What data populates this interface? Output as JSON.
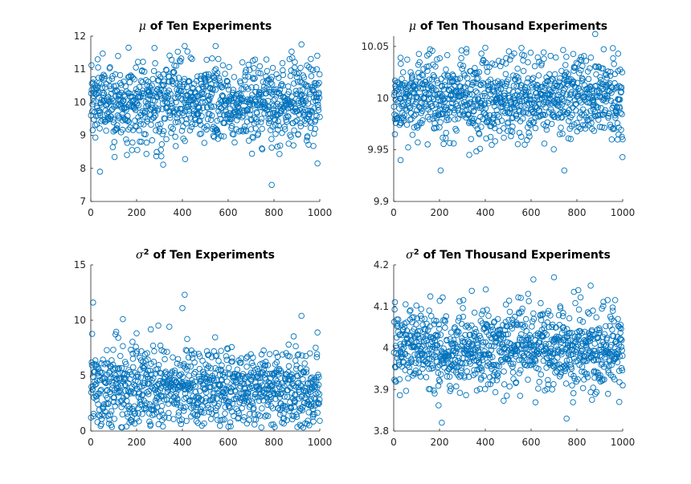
{
  "colors": {
    "marker": "#0072bd",
    "axis": "#262626"
  },
  "chart_data": [
    {
      "type": "scatter",
      "title_symbol": "μ",
      "title_superscript": "",
      "title": "of Ten Experiments",
      "xlim": [
        0,
        1000
      ],
      "ylim": [
        7,
        12
      ],
      "xticks": [
        0,
        200,
        400,
        600,
        800,
        1000
      ],
      "yticks": [
        7,
        8,
        9,
        10,
        11,
        12
      ],
      "xticklabels": [
        "0",
        "200",
        "400",
        "600",
        "800",
        "1000"
      ],
      "yticklabels": [
        "7",
        "8",
        "9",
        "10",
        "11",
        "12"
      ],
      "grid": false,
      "points": {
        "n": 1000,
        "x_range": [
          1,
          1000
        ],
        "center": 10.0,
        "sd": 0.6,
        "clip": [
          7.9,
          11.75
        ]
      },
      "highlights": [
        {
          "x": 30,
          "y": 11.3
        },
        {
          "x": 40,
          "y": 7.9
        },
        {
          "x": 165,
          "y": 11.65
        },
        {
          "x": 410,
          "y": 11.7
        },
        {
          "x": 545,
          "y": 11.7
        },
        {
          "x": 790,
          "y": 7.5
        },
        {
          "x": 920,
          "y": 11.75
        },
        {
          "x": 990,
          "y": 8.15
        }
      ]
    },
    {
      "type": "scatter",
      "title_symbol": "μ",
      "title_superscript": "",
      "title": "of Ten Thousand Experiments",
      "xlim": [
        0,
        1000
      ],
      "ylim": [
        9.9,
        10.06
      ],
      "xticks": [
        0,
        200,
        400,
        600,
        800,
        1000
      ],
      "yticks": [
        9.9,
        9.95,
        10,
        10.05
      ],
      "xticklabels": [
        "0",
        "200",
        "400",
        "600",
        "800",
        "1000"
      ],
      "yticklabels": [
        "9.9",
        "9.95",
        "10",
        "10.05"
      ],
      "grid": false,
      "points": {
        "n": 1000,
        "x_range": [
          1,
          1000
        ],
        "center": 10.0,
        "sd": 0.02,
        "clip": [
          9.935,
          10.05
        ]
      },
      "highlights": [
        {
          "x": 5,
          "y": 9.965
        },
        {
          "x": 30,
          "y": 9.94
        },
        {
          "x": 205,
          "y": 9.93
        },
        {
          "x": 745,
          "y": 9.93
        },
        {
          "x": 880,
          "y": 10.062
        },
        {
          "x": 980,
          "y": 10.043
        }
      ]
    },
    {
      "type": "scatter",
      "title_symbol": "σ",
      "title_superscript": "2",
      "title": "of Ten Experiments",
      "xlim": [
        0,
        1000
      ],
      "ylim": [
        0,
        15
      ],
      "xticks": [
        0,
        200,
        400,
        600,
        800,
        1000
      ],
      "yticks": [
        0,
        5,
        10,
        15
      ],
      "xticklabels": [
        "0",
        "200",
        "400",
        "600",
        "800",
        "1000"
      ],
      "yticklabels": [
        "0",
        "5",
        "10",
        "15"
      ],
      "grid": false,
      "points": {
        "n": 1000,
        "x_range": [
          1,
          1000
        ],
        "center": 3.8,
        "sd": 1.9,
        "clip": [
          0.3,
          10.5
        ]
      },
      "highlights": [
        {
          "x": 10,
          "y": 11.6
        },
        {
          "x": 140,
          "y": 10.1
        },
        {
          "x": 410,
          "y": 12.3
        },
        {
          "x": 400,
          "y": 11.1
        },
        {
          "x": 920,
          "y": 10.4
        },
        {
          "x": 990,
          "y": 8.9
        }
      ]
    },
    {
      "type": "scatter",
      "title_symbol": "σ",
      "title_superscript": "2",
      "title": "of Ten Thousand Experiments",
      "xlim": [
        0,
        1000
      ],
      "ylim": [
        3.8,
        4.2
      ],
      "xticks": [
        0,
        200,
        400,
        600,
        800,
        1000
      ],
      "yticks": [
        3.8,
        3.9,
        4,
        4.1,
        4.2
      ],
      "xticklabels": [
        "0",
        "200",
        "400",
        "600",
        "800",
        "1000"
      ],
      "yticklabels": [
        "3.8",
        "3.9",
        "4",
        "4.1",
        "4.2"
      ],
      "grid": false,
      "points": {
        "n": 1000,
        "x_range": [
          1,
          1000
        ],
        "center": 4.0,
        "sd": 0.05,
        "clip": [
          3.85,
          4.16
        ]
      },
      "highlights": [
        {
          "x": 210,
          "y": 3.82
        },
        {
          "x": 610,
          "y": 4.165
        },
        {
          "x": 700,
          "y": 4.17
        },
        {
          "x": 755,
          "y": 3.83
        },
        {
          "x": 860,
          "y": 4.15
        },
        {
          "x": 985,
          "y": 3.87
        }
      ]
    }
  ]
}
